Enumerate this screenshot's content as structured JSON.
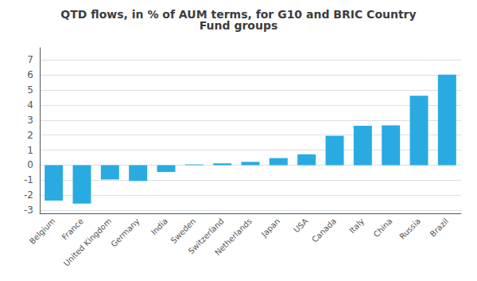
{
  "chart_data": {
    "type": "bar",
    "title": "QTD flows, in % of AUM terms, for G10 and BRIC Country\nFund groups",
    "categories": [
      "Belgium",
      "France",
      "United Kingdom",
      "Germany",
      "India",
      "Sweden",
      "Switzerland",
      "Netherlands",
      "Japan",
      "USA",
      "Canada",
      "Italy",
      "China",
      "Russia",
      "Brazil"
    ],
    "values": [
      -2.35,
      -2.55,
      -0.95,
      -1.05,
      -0.45,
      0.05,
      0.12,
      0.22,
      0.47,
      0.72,
      1.95,
      2.62,
      2.65,
      4.62,
      6.02
    ],
    "color": "#29ABE2",
    "ylim": [
      -3.2,
      7.8
    ],
    "yticks": [
      -3,
      -2,
      -1,
      0,
      1,
      2,
      3,
      4,
      5,
      6,
      7
    ],
    "grid": true
  }
}
